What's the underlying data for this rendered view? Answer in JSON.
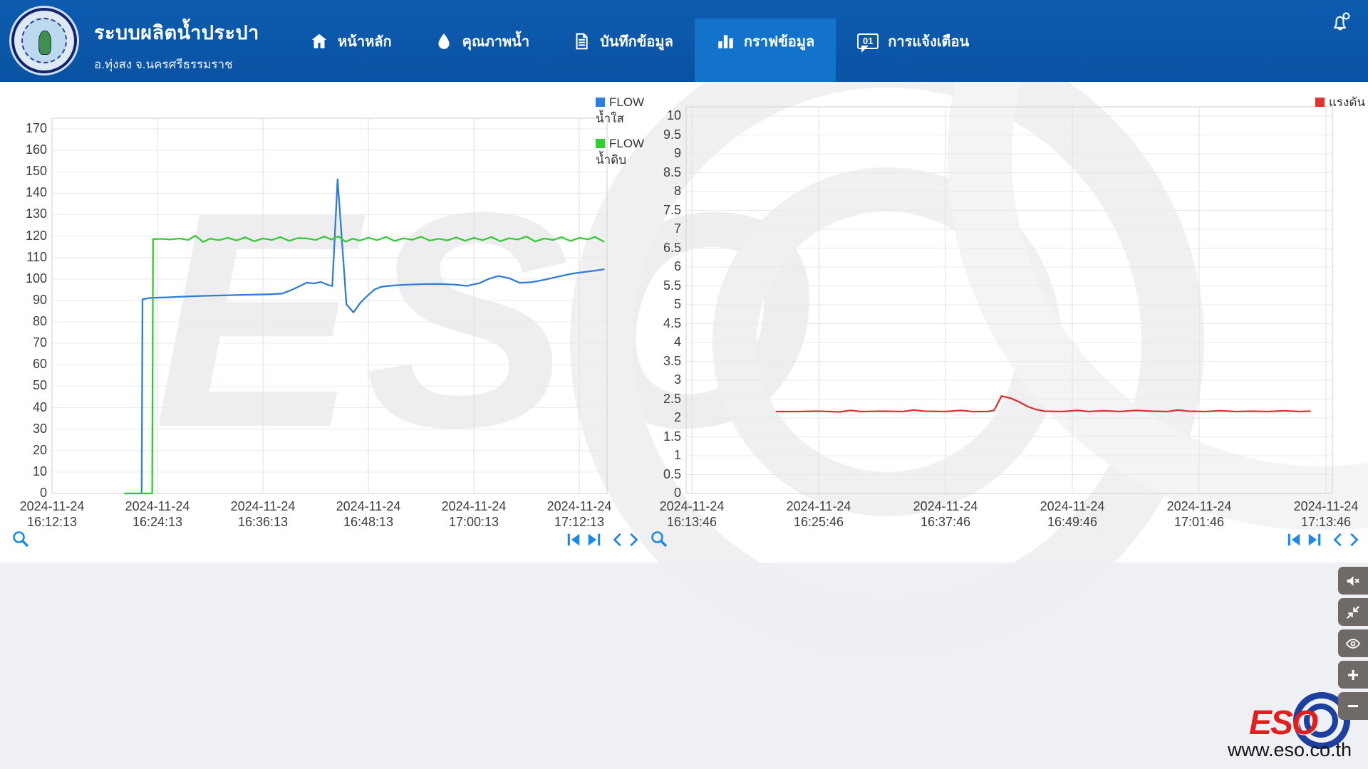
{
  "header": {
    "title": "ระบบผลิตน้ำประปา",
    "subtitle": "อ.ทุ่งสง จ.นครศรีธรรมราช",
    "bg_color": "#0a52a2",
    "active_tab_color": "#1373cb",
    "nav": {
      "items": [
        {
          "label": "หน้าหลัก",
          "icon": "home-icon",
          "active": false
        },
        {
          "label": "คุณภาพน้ำ",
          "icon": "water-drop-icon",
          "active": false
        },
        {
          "label": "บันทึกข้อมูล",
          "icon": "document-icon",
          "active": false
        },
        {
          "label": "กราฟข้อมูล",
          "icon": "bar-chart-icon",
          "active": true
        },
        {
          "label": "การแจ้งเตือน",
          "icon": "chat-alert-icon",
          "active": false,
          "badge": "01"
        }
      ]
    },
    "bell_icon": "notification-bell"
  },
  "watermark_text": "ESO",
  "side_buttons": [
    {
      "icon": "mute-speaker-icon"
    },
    {
      "icon": "collapse-arrows-icon"
    },
    {
      "icon": "eye-icon"
    },
    {
      "icon": "plus-icon",
      "glyph": "+"
    },
    {
      "icon": "minus-icon",
      "glyph": "−"
    }
  ],
  "footer": {
    "brand": "ESO",
    "website": "www.eso.co.th"
  },
  "chart_data": [
    {
      "type": "line",
      "title": "",
      "xlabel": "",
      "ylabel": "",
      "ylim": [
        0,
        170
      ],
      "ytick_step": 10,
      "yticks": [
        0,
        10,
        20,
        30,
        40,
        50,
        60,
        70,
        80,
        90,
        100,
        110,
        120,
        130,
        140,
        150,
        160,
        170
      ],
      "grid": true,
      "legend_position": "right-of-plot-top",
      "xticks": [
        {
          "date": "2024-11-24",
          "time": "16:12:13"
        },
        {
          "date": "2024-11-24",
          "time": "16:24:13"
        },
        {
          "date": "2024-11-24",
          "time": "16:36:13"
        },
        {
          "date": "2024-11-24",
          "time": "16:48:13"
        },
        {
          "date": "2024-11-24",
          "time": "17:00:13"
        },
        {
          "date": "2024-11-24",
          "time": "17:12:13"
        }
      ],
      "minutes_per_tick": 12,
      "series": [
        {
          "name": "FLOW น้ำใส",
          "legend": [
            "FLOW",
            "น้ำใส"
          ],
          "color": "#2f7ed8",
          "points": [
            [
              8.3,
              0
            ],
            [
              10.2,
              0
            ],
            [
              10.3,
              90.5
            ],
            [
              11.2,
              91.2
            ],
            [
              13,
              91.4
            ],
            [
              15,
              91.8
            ],
            [
              17,
              92.1
            ],
            [
              19,
              92.3
            ],
            [
              21,
              92.5
            ],
            [
              23,
              92.7
            ],
            [
              25,
              92.9
            ],
            [
              26.2,
              93.2
            ],
            [
              27.2,
              94.8
            ],
            [
              28.2,
              96.7
            ],
            [
              29,
              98.3
            ],
            [
              29.8,
              97.9
            ],
            [
              30.6,
              98.6
            ],
            [
              31.3,
              97.4
            ],
            [
              31.9,
              96.7
            ],
            [
              32.5,
              146.5
            ],
            [
              33.5,
              88.2
            ],
            [
              34.3,
              84.4
            ],
            [
              35.1,
              89
            ],
            [
              35.9,
              92.2
            ],
            [
              36.7,
              95.1
            ],
            [
              37.5,
              96.4
            ],
            [
              38.6,
              96.9
            ],
            [
              40,
              97.3
            ],
            [
              42,
              97.6
            ],
            [
              44,
              97.7
            ],
            [
              45.8,
              97.4
            ],
            [
              47.2,
              96.8
            ],
            [
              48.6,
              98
            ],
            [
              49.8,
              100.2
            ],
            [
              50.8,
              101.4
            ],
            [
              52,
              100.4
            ],
            [
              53.2,
              98.2
            ],
            [
              54.6,
              98.5
            ],
            [
              56,
              99.6
            ],
            [
              57.6,
              101.1
            ],
            [
              59.2,
              102.5
            ],
            [
              60.8,
              103.4
            ],
            [
              62,
              104
            ],
            [
              62.8,
              104.5
            ]
          ]
        },
        {
          "name": "FLOW น้ำดิบ",
          "legend": [
            "FLOW",
            "น้ำดิบ"
          ],
          "color": "#33cc33",
          "points": [
            [
              8.3,
              0
            ],
            [
              11.4,
              0
            ],
            [
              11.5,
              118.6
            ],
            [
              12.5,
              118.7
            ],
            [
              13.5,
              118.4
            ],
            [
              14.5,
              118.9
            ],
            [
              15.5,
              118.2
            ],
            [
              16.3,
              120.2
            ],
            [
              17.2,
              117.3
            ],
            [
              18,
              118.8
            ],
            [
              19,
              118.1
            ],
            [
              20,
              119.2
            ],
            [
              21,
              118
            ],
            [
              22,
              119.4
            ],
            [
              23,
              117.6
            ],
            [
              24,
              118.9
            ],
            [
              25,
              118.2
            ],
            [
              26,
              119.5
            ],
            [
              27,
              117.8
            ],
            [
              28,
              119.1
            ],
            [
              29,
              118.9
            ],
            [
              30,
              118.2
            ],
            [
              31,
              119.8
            ],
            [
              31.8,
              118.4
            ],
            [
              32.6,
              119.9
            ],
            [
              33.4,
              117.4
            ],
            [
              34.2,
              118.8
            ],
            [
              35,
              117.9
            ],
            [
              36,
              119.3
            ],
            [
              37,
              118.1
            ],
            [
              38,
              119.6
            ],
            [
              39,
              117.7
            ],
            [
              40,
              119
            ],
            [
              41,
              118.3
            ],
            [
              42,
              119.7
            ],
            [
              43,
              117.9
            ],
            [
              44,
              118.8
            ],
            [
              45,
              118
            ],
            [
              46,
              119.4
            ],
            [
              47,
              117.8
            ],
            [
              48,
              119.2
            ],
            [
              49,
              118.1
            ],
            [
              50,
              119.6
            ],
            [
              51,
              117.6
            ],
            [
              52,
              119
            ],
            [
              53,
              118.4
            ],
            [
              54,
              119.8
            ],
            [
              55,
              117.5
            ],
            [
              56,
              118.9
            ],
            [
              57,
              118.2
            ],
            [
              58,
              119.5
            ],
            [
              59,
              117.7
            ],
            [
              60,
              119.2
            ],
            [
              61,
              118.5
            ],
            [
              61.8,
              119.6
            ],
            [
              62.8,
              117.4
            ]
          ]
        }
      ],
      "toolbar": {
        "left": [
          "zoom-icon"
        ],
        "right": [
          "skip-start-icon",
          "skip-end-icon",
          "pan-left-icon",
          "pan-right-icon"
        ]
      }
    },
    {
      "type": "line",
      "title": "",
      "xlabel": "",
      "ylabel": "",
      "ylim": [
        0,
        10
      ],
      "ytick_step": 0.5,
      "yticks": [
        0,
        0.5,
        1,
        1.5,
        2,
        2.5,
        3,
        3.5,
        4,
        4.5,
        5,
        5.5,
        6,
        6.5,
        7,
        7.5,
        8,
        8.5,
        9,
        9.5,
        10
      ],
      "grid": true,
      "legend_position": "top-right",
      "xticks": [
        {
          "date": "2024-11-24",
          "time": "16:13:46"
        },
        {
          "date": "2024-11-24",
          "time": "16:25:46"
        },
        {
          "date": "2024-11-24",
          "time": "16:37:46"
        },
        {
          "date": "2024-11-24",
          "time": "16:49:46"
        },
        {
          "date": "2024-11-24",
          "time": "17:01:46"
        },
        {
          "date": "2024-11-24",
          "time": "17:13:46"
        }
      ],
      "minutes_per_tick": 12,
      "series": [
        {
          "name": "แรงดัน",
          "legend": [
            "แรงดัน"
          ],
          "color": "#dd3333",
          "points": [
            [
              8,
              2.17
            ],
            [
              10,
              2.17
            ],
            [
              12,
              2.18
            ],
            [
              14,
              2.16
            ],
            [
              15,
              2.2
            ],
            [
              16,
              2.17
            ],
            [
              18,
              2.18
            ],
            [
              20,
              2.17
            ],
            [
              21,
              2.21
            ],
            [
              22,
              2.18
            ],
            [
              24,
              2.17
            ],
            [
              25.5,
              2.2
            ],
            [
              26.5,
              2.17
            ],
            [
              28,
              2.17
            ],
            [
              28.6,
              2.2
            ],
            [
              29.3,
              2.58
            ],
            [
              30.2,
              2.52
            ],
            [
              31,
              2.42
            ],
            [
              31.8,
              2.3
            ],
            [
              32.6,
              2.22
            ],
            [
              33.4,
              2.18
            ],
            [
              35,
              2.17
            ],
            [
              36.5,
              2.2
            ],
            [
              37.5,
              2.17
            ],
            [
              39,
              2.19
            ],
            [
              40.5,
              2.17
            ],
            [
              42,
              2.2
            ],
            [
              43.5,
              2.18
            ],
            [
              45,
              2.17
            ],
            [
              46,
              2.21
            ],
            [
              47,
              2.18
            ],
            [
              48.5,
              2.17
            ],
            [
              50,
              2.19
            ],
            [
              51.5,
              2.17
            ],
            [
              53,
              2.18
            ],
            [
              54.5,
              2.17
            ],
            [
              56,
              2.19
            ],
            [
              57.5,
              2.17
            ],
            [
              58.5,
              2.18
            ]
          ]
        }
      ],
      "toolbar": {
        "left": [
          "zoom-icon"
        ],
        "right": [
          "skip-start-icon",
          "skip-end-icon",
          "pan-left-icon",
          "pan-right-icon"
        ]
      }
    }
  ]
}
